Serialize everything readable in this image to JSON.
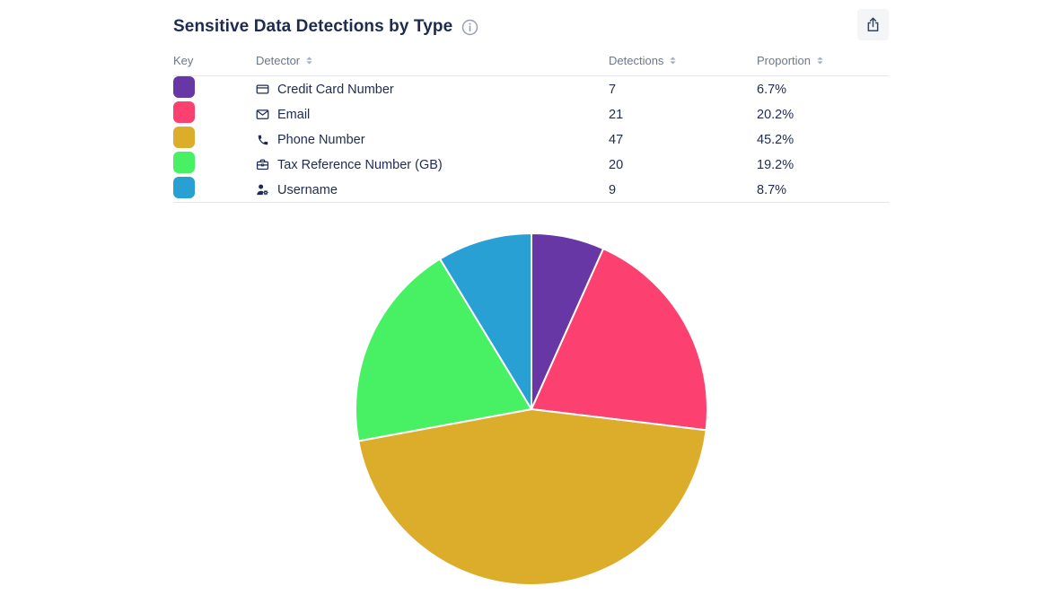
{
  "header": {
    "title": "Sensitive Data Detections by Type",
    "info_icon": "info-icon",
    "export_icon": "share-export-icon"
  },
  "table": {
    "columns": [
      {
        "label": "Key",
        "sortable": false
      },
      {
        "label": "Detector",
        "sortable": true
      },
      {
        "label": "Detections",
        "sortable": true
      },
      {
        "label": "Proportion",
        "sortable": true
      }
    ],
    "rows": [
      {
        "key_color": "#6737A5",
        "icon": "credit-card-icon",
        "detector": "Credit Card Number",
        "detections": "7",
        "proportion": "6.7%"
      },
      {
        "key_color": "#FC4070",
        "icon": "email-icon",
        "detector": "Email",
        "detections": "21",
        "proportion": "20.2%"
      },
      {
        "key_color": "#DCAC2B",
        "icon": "phone-icon",
        "detector": "Phone Number",
        "detections": "47",
        "proportion": "45.2%"
      },
      {
        "key_color": "#47F163",
        "icon": "briefcase-icon",
        "detector": "Tax Reference Number (GB)",
        "detections": "20",
        "proportion": "19.2%"
      },
      {
        "key_color": "#29A0D3",
        "icon": "user-gear-icon",
        "detector": "Username",
        "detections": "9",
        "proportion": "8.7%"
      }
    ]
  },
  "chart_data": {
    "type": "pie",
    "title": "Sensitive Data Detections by Type",
    "categories": [
      "Credit Card Number",
      "Email",
      "Phone Number",
      "Tax Reference Number (GB)",
      "Username"
    ],
    "values": [
      7,
      21,
      47,
      20,
      9
    ],
    "percentages": [
      6.7,
      20.2,
      45.2,
      19.2,
      8.7
    ],
    "colors": [
      "#6737A5",
      "#FC4070",
      "#DCAC2B",
      "#47F163",
      "#29A0D3"
    ],
    "start_angle_deg": 0,
    "direction": "clockwise",
    "slice_border_color": "#ffffff",
    "slice_border_width": 2,
    "legend_position": "table-above-chart"
  },
  "ui_colors": {
    "title_text": "#1D2B4E",
    "body_text": "#1F2B51",
    "header_text": "#6B778C",
    "divider": "#E4E6EA",
    "export_button_bg": "#F4F5F7"
  }
}
